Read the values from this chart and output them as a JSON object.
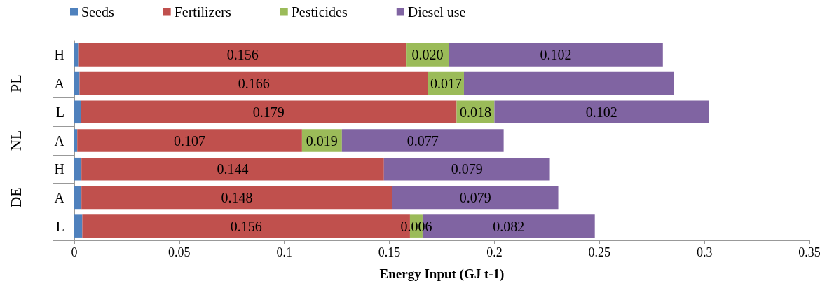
{
  "chart_data": {
    "type": "bar",
    "orientation": "horizontal",
    "stacked": true,
    "xlabel": "Energy Input (GJ t-1)",
    "categories": [
      "H",
      "A",
      "L",
      "A",
      "H",
      "A",
      "L"
    ],
    "annotations": [
      "PL",
      "NL",
      "DE"
    ],
    "legend": "top",
    "grid": false,
    "xlim": [
      0,
      0.35
    ],
    "xticks": [
      0,
      0.05,
      0.1,
      0.15,
      0.2,
      0.25,
      0.3,
      0.35
    ],
    "series": [
      {
        "name": "Seeds",
        "color": "#4f81bd",
        "values": [
          0.0022,
          0.0025,
          0.003,
          0.0014,
          0.0034,
          0.0034,
          0.0038
        ],
        "value_labels": [
          null,
          null,
          null,
          null,
          null,
          null,
          null
        ]
      },
      {
        "name": "Fertilizers",
        "color": "#c0504d",
        "values": [
          0.156,
          0.166,
          0.179,
          0.107,
          0.144,
          0.148,
          0.156
        ],
        "value_labels": [
          "0.156",
          "0.166",
          "0.179",
          "0.107",
          "0.144",
          "0.148",
          "0.156"
        ]
      },
      {
        "name": "Pesticides",
        "color": "#9bbb59",
        "values": [
          0.02,
          0.017,
          0.018,
          0.019,
          null,
          null,
          0.006
        ],
        "value_labels": [
          "0.020",
          "0.017",
          "0.018",
          "0.019",
          null,
          null,
          "0.006"
        ]
      },
      {
        "name": "Diesel use",
        "color": "#8064a2",
        "values": [
          0.102,
          0.1,
          0.102,
          0.077,
          0.079,
          0.079,
          0.082
        ],
        "value_labels": [
          "0.102",
          null,
          "0.102",
          "0.077",
          "0.079",
          "0.079",
          "0.082"
        ]
      }
    ]
  }
}
